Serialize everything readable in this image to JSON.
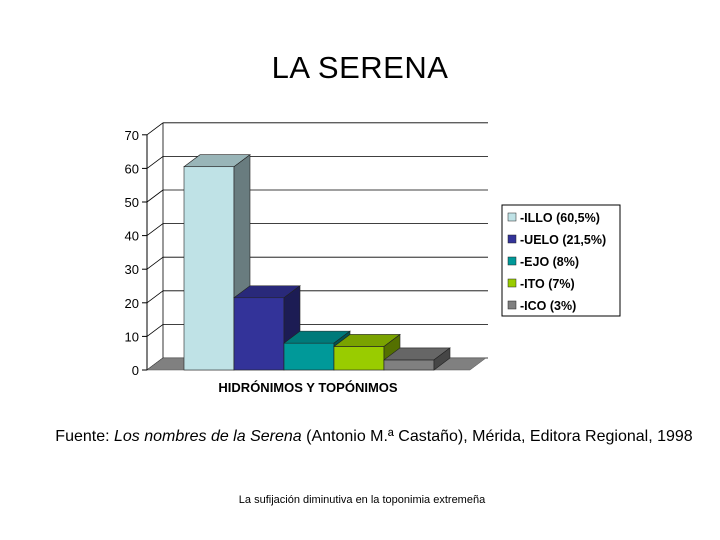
{
  "title": "LA SERENA",
  "chart_data": {
    "type": "bar",
    "style": "3d",
    "title": "",
    "xlabel": "HIDRÓNIMOS Y TOPÓNIMOS",
    "ylabel": "",
    "ylim": [
      0,
      70
    ],
    "yticks": [
      "0",
      "10",
      "20",
      "30",
      "40",
      "50",
      "60",
      "70"
    ],
    "grid": true,
    "legend_position": "right",
    "series": [
      {
        "name": "-ILLO (60,5%)",
        "value": 60.5,
        "color": "#bfe2e6"
      },
      {
        "name": "-UELO (21,5%)",
        "value": 21.5,
        "color": "#333399"
      },
      {
        "name": "-EJO (8%)",
        "value": 8,
        "color": "#009999"
      },
      {
        "name": "-ITO (7%)",
        "value": 7,
        "color": "#99cc00"
      },
      {
        "name": "-ICO (3%)",
        "value": 3,
        "color": "#808080"
      }
    ]
  },
  "source": {
    "prefix": "Fuente: ",
    "book": "Los nombres de la Serena",
    "rest": " (Antonio M.ª Castaño), Mérida, Editora Regional, 1998"
  },
  "footer": "La sufijación diminutiva en la toponimia extremeña"
}
